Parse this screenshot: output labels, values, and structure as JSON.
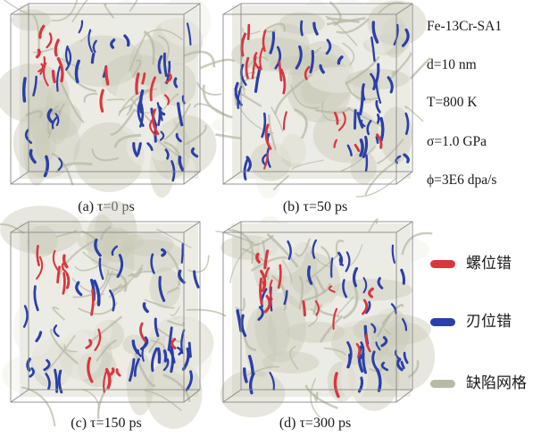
{
  "panels": [
    {
      "id": "a",
      "caption": "(a) τ=0 ps"
    },
    {
      "id": "b",
      "caption": "(b) τ=50 ps"
    },
    {
      "id": "c",
      "caption": "(c) τ=150 ps"
    },
    {
      "id": "d",
      "caption": "(d) τ=300 ps"
    }
  ],
  "parameters": {
    "material": "Fe-13Cr-SA1",
    "grain_size": "d=10 nm",
    "temperature": "T=800 K",
    "stress": "σ=1.0 GPa",
    "dose_rate": "ϕ=3E6 dpa/s"
  },
  "legend": [
    {
      "label": "螺位错",
      "color": "#d9363e"
    },
    {
      "label": "刃位错",
      "color": "#2a3fa8"
    },
    {
      "label": "缺陷网格",
      "color": "#b9b9a8"
    }
  ],
  "colors": {
    "screw": "#d9363e",
    "edge": "#2a3fa8",
    "mesh": "#b5b7a2",
    "box": "#8a8a8a"
  }
}
